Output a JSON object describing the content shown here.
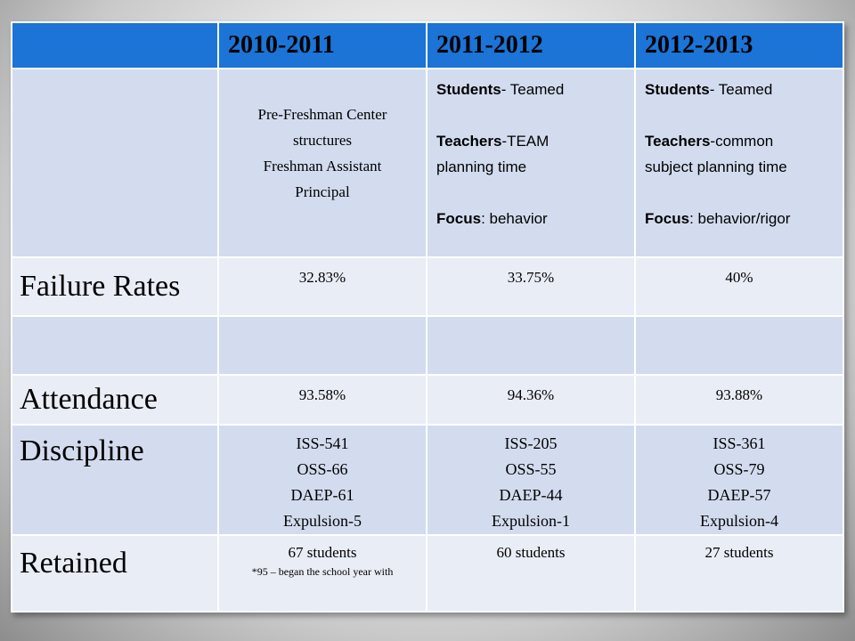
{
  "header": {
    "years": [
      "2010-2011",
      "2011-2012",
      "2012-2013"
    ]
  },
  "structure_row": {
    "col1": {
      "line1": "Pre-Freshman Center",
      "line2": "structures",
      "line3": "Freshman Assistant",
      "line4": "Principal"
    },
    "col2": {
      "students_label": "Students",
      "students_value": "- Teamed",
      "teachers_label": "Teachers",
      "teachers_value": "-TEAM",
      "teachers_value_2": "planning time",
      "focus_label": "Focus",
      "focus_value": ": behavior"
    },
    "col3": {
      "students_label": "Students",
      "students_value": "- Teamed",
      "teachers_label": "Teachers",
      "teachers_value": "-common",
      "teachers_value_2": "subject planning time",
      "focus_label": "Focus",
      "focus_value": ": behavior/rigor"
    }
  },
  "rows": {
    "failure": {
      "label": "Failure Rates",
      "values": [
        "32.83%",
        "33.75%",
        "40%"
      ]
    },
    "attendance": {
      "label": "Attendance",
      "values": [
        "93.58%",
        "94.36%",
        "93.88%"
      ]
    },
    "discipline": {
      "label": "Discipline",
      "values": [
        [
          "ISS-541",
          "OSS-66",
          "DAEP-61",
          "Expulsion-5"
        ],
        [
          "ISS-205",
          "OSS-55",
          "DAEP-44",
          "Expulsion-1"
        ],
        [
          "ISS-361",
          "OSS-79",
          "DAEP-57",
          "Expulsion-4"
        ]
      ]
    },
    "retained": {
      "label": "Retained",
      "values": [
        "67 students",
        "60 students",
        "27 students"
      ],
      "note": "*95 – began the school year with"
    }
  },
  "colors": {
    "header_blue": "#1b74d6",
    "row_light": "#d3dcee",
    "row_lighter": "#e9edf6"
  }
}
